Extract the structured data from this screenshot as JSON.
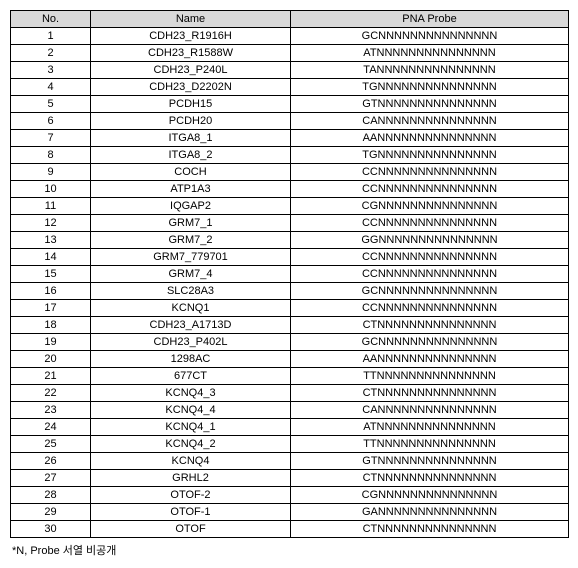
{
  "table": {
    "headers": {
      "no": "No.",
      "name": "Name",
      "probe": "PNA Probe"
    },
    "rows": [
      {
        "no": "1",
        "name": "CDH23_R1916H",
        "probe": "GCNNNNNNNNNNNNNNN"
      },
      {
        "no": "2",
        "name": "CDH23_R1588W",
        "probe": "ATNNNNNNNNNNNNNNN"
      },
      {
        "no": "3",
        "name": "CDH23_P240L",
        "probe": "TANNNNNNNNNNNNNNN"
      },
      {
        "no": "4",
        "name": "CDH23_D2202N",
        "probe": "TGNNNNNNNNNNNNNNN"
      },
      {
        "no": "5",
        "name": "PCDH15",
        "probe": "GTNNNNNNNNNNNNNNN"
      },
      {
        "no": "6",
        "name": "PCDH20",
        "probe": "CANNNNNNNNNNNNNNN"
      },
      {
        "no": "7",
        "name": "ITGA8_1",
        "probe": "AANNNNNNNNNNNNNNN"
      },
      {
        "no": "8",
        "name": "ITGA8_2",
        "probe": "TGNNNNNNNNNNNNNNN"
      },
      {
        "no": "9",
        "name": "COCH",
        "probe": "CCNNNNNNNNNNNNNNN"
      },
      {
        "no": "10",
        "name": "ATP1A3",
        "probe": "CCNNNNNNNNNNNNNNN"
      },
      {
        "no": "11",
        "name": "IQGAP2",
        "probe": "CGNNNNNNNNNNNNNNN"
      },
      {
        "no": "12",
        "name": "GRM7_1",
        "probe": "CCNNNNNNNNNNNNNNN"
      },
      {
        "no": "13",
        "name": "GRM7_2",
        "probe": "GGNNNNNNNNNNNNNNN"
      },
      {
        "no": "14",
        "name": "GRM7_779701",
        "probe": "CCNNNNNNNNNNNNNNN"
      },
      {
        "no": "15",
        "name": "GRM7_4",
        "probe": "CCNNNNNNNNNNNNNNN"
      },
      {
        "no": "16",
        "name": "SLC28A3",
        "probe": "GCNNNNNNNNNNNNNNN"
      },
      {
        "no": "17",
        "name": "KCNQ1",
        "probe": "CCNNNNNNNNNNNNNNN"
      },
      {
        "no": "18",
        "name": "CDH23_A1713D",
        "probe": "CTNNNNNNNNNNNNNNN"
      },
      {
        "no": "19",
        "name": "CDH23_P402L",
        "probe": "GCNNNNNNNNNNNNNNN"
      },
      {
        "no": "20",
        "name": "1298AC",
        "probe": "AANNNNNNNNNNNNNNN"
      },
      {
        "no": "21",
        "name": "677CT",
        "probe": "TTNNNNNNNNNNNNNNN"
      },
      {
        "no": "22",
        "name": "KCNQ4_3",
        "probe": "CTNNNNNNNNNNNNNNN"
      },
      {
        "no": "23",
        "name": "KCNQ4_4",
        "probe": "CANNNNNNNNNNNNNNN"
      },
      {
        "no": "24",
        "name": "KCNQ4_1",
        "probe": "ATNNNNNNNNNNNNNNN"
      },
      {
        "no": "25",
        "name": "KCNQ4_2",
        "probe": "TTNNNNNNNNNNNNNNN"
      },
      {
        "no": "26",
        "name": "KCNQ4",
        "probe": "GTNNNNNNNNNNNNNNN"
      },
      {
        "no": "27",
        "name": "GRHL2",
        "probe": "CTNNNNNNNNNNNNNNN"
      },
      {
        "no": "28",
        "name": "OTOF-2",
        "probe": "CGNNNNNNNNNNNNNNN"
      },
      {
        "no": "29",
        "name": "OTOF-1",
        "probe": "GANNNNNNNNNNNNNNN"
      },
      {
        "no": "30",
        "name": "OTOF",
        "probe": "CTNNNNNNNNNNNNNNN"
      }
    ]
  },
  "footnote": "*N, Probe 서열 비공개"
}
